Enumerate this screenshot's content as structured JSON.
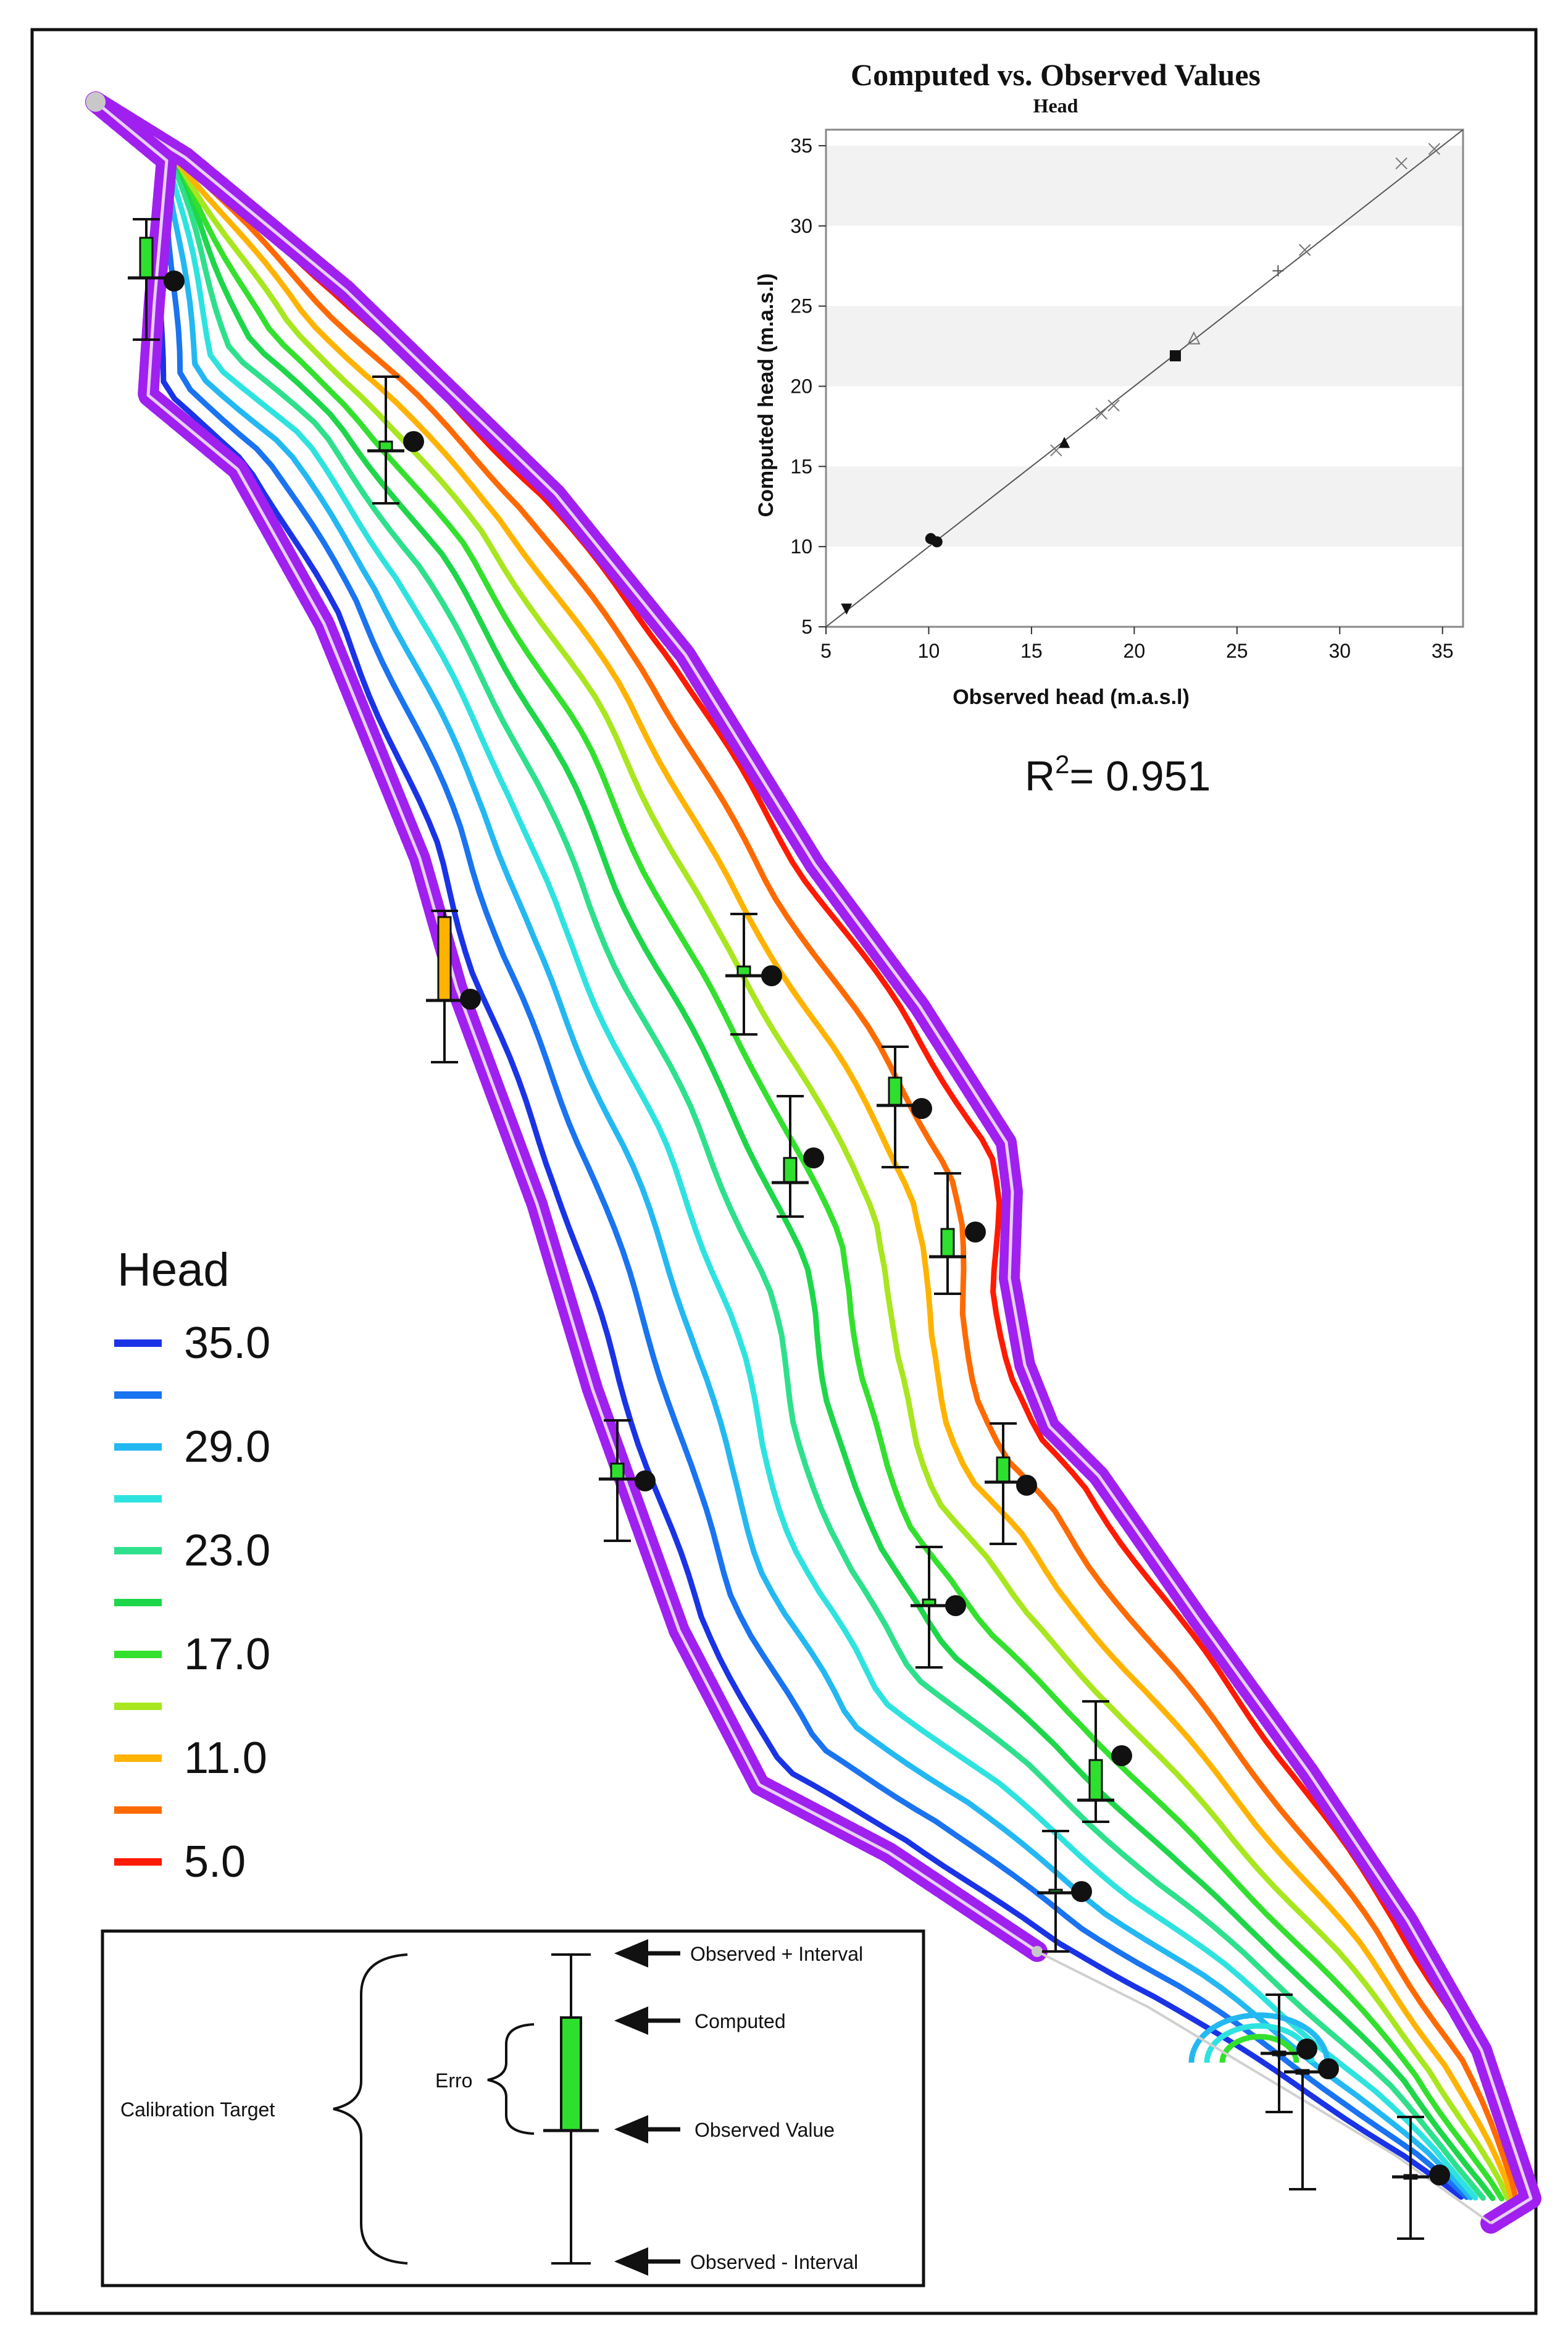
{
  "map": {
    "type": "groundwater head contour map",
    "contour_levels": [
      35.0,
      32.0,
      29.0,
      26.0,
      23.0,
      20.0,
      17.0,
      14.0,
      11.0,
      8.0,
      5.0
    ],
    "contour_colors": [
      "#1a33e6",
      "#1a73f0",
      "#24b8f2",
      "#2ee3df",
      "#2ee08c",
      "#1ed64a",
      "#33e02e",
      "#a8e61f",
      "#ffb300",
      "#ff6a00",
      "#ff1a00"
    ],
    "boundary_color": "#a020f0"
  },
  "legend": {
    "title": "Head",
    "entries": [
      {
        "label": "35.0",
        "color": "#1a33e6"
      },
      {
        "label": "",
        "color": "#1a73f0"
      },
      {
        "label": "29.0",
        "color": "#24b8f2"
      },
      {
        "label": "",
        "color": "#2ee3df"
      },
      {
        "label": "23.0",
        "color": "#2ee08c"
      },
      {
        "label": "",
        "color": "#1ed64a"
      },
      {
        "label": "17.0",
        "color": "#33e02e"
      },
      {
        "label": "",
        "color": "#a8e61f"
      },
      {
        "label": "11.0",
        "color": "#ffb300"
      },
      {
        "label": "",
        "color": "#ff6a00"
      },
      {
        "label": "5.0",
        "color": "#ff1a00"
      }
    ]
  },
  "chart_data": {
    "type": "scatter",
    "title": "Computed vs. Observed Values",
    "subtitle": "Head",
    "xlabel": "Observed head (m.a.s.l)",
    "ylabel": "Computed head (m.a.s.l)",
    "xlim": [
      5,
      36
    ],
    "ylim": [
      5,
      36
    ],
    "xticks": [
      "5",
      "10",
      "15",
      "20",
      "25",
      "30",
      "35"
    ],
    "yticks": [
      "5",
      "10",
      "15",
      "20",
      "25",
      "30",
      "35"
    ],
    "reference_line": "1:1",
    "points": [
      {
        "x": 6.0,
        "y": 6.1,
        "marker": "tri-down"
      },
      {
        "x": 10.1,
        "y": 10.5,
        "marker": "circle"
      },
      {
        "x": 10.4,
        "y": 10.3,
        "marker": "circle"
      },
      {
        "x": 16.2,
        "y": 16.0,
        "marker": "x"
      },
      {
        "x": 16.6,
        "y": 16.5,
        "marker": "tri-up"
      },
      {
        "x": 18.4,
        "y": 18.3,
        "marker": "x"
      },
      {
        "x": 19.0,
        "y": 18.8,
        "marker": "x"
      },
      {
        "x": 22.0,
        "y": 21.9,
        "marker": "square"
      },
      {
        "x": 22.9,
        "y": 23.0,
        "marker": "tri-up-open"
      },
      {
        "x": 27.0,
        "y": 27.2,
        "marker": "plus"
      },
      {
        "x": 28.3,
        "y": 28.5,
        "marker": "x"
      },
      {
        "x": 33.0,
        "y": 33.9,
        "marker": "x"
      },
      {
        "x": 34.6,
        "y": 34.8,
        "marker": "x"
      }
    ],
    "grid_bands": [
      [
        10,
        15
      ],
      [
        20,
        25
      ],
      [
        30,
        35
      ]
    ]
  },
  "r2": {
    "prefix": "R",
    "sup": "2",
    "value": "= 0.951"
  },
  "calibration_key": {
    "group_label": "Calibration Target",
    "error_label": "Erro",
    "observed_plus": "Observed + Interval",
    "computed": "Computed",
    "observed_value": "Observed Value",
    "observed_minus": "Observed - Interval"
  }
}
